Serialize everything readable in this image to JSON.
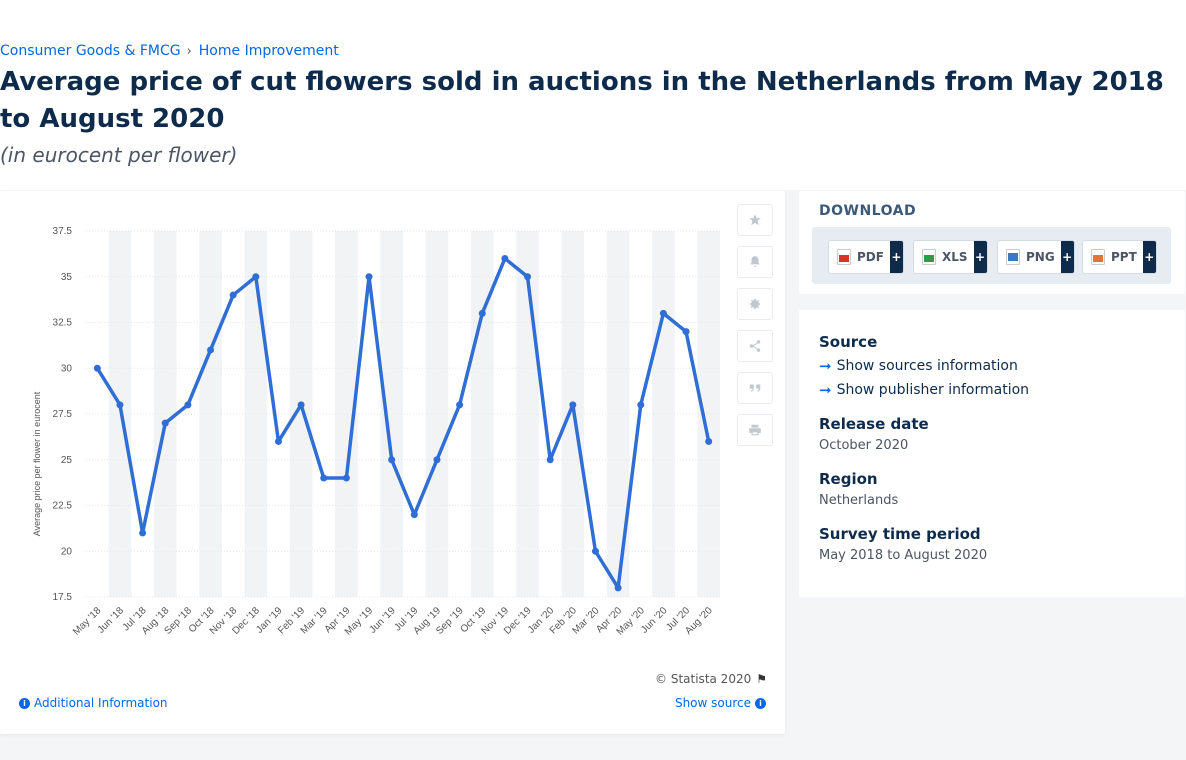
{
  "breadcrumb": [
    "Consumer Goods & FMCG",
    "Home Improvement"
  ],
  "title": "Average price of cut flowers sold in auctions in the Netherlands from May 2018 to August 2020",
  "subtitle": "(in eurocent per flower)",
  "chart_data": {
    "type": "line",
    "ylabel": "Average price per flower in eurocent",
    "ylim": [
      17.5,
      37.5
    ],
    "yticks": [
      17.5,
      20,
      22.5,
      25,
      27.5,
      30,
      32.5,
      35,
      37.5
    ],
    "ytick_labels": [
      "17.5",
      "20",
      "22.5",
      "25",
      "27.5",
      "30",
      "32.5",
      "35",
      "37.5"
    ],
    "categories": [
      "May '18",
      "Jun '18",
      "Jul '18",
      "Aug '18",
      "Sep '18",
      "Oct '18",
      "Nov '18",
      "Dec '18",
      "Jan '19",
      "Feb '19",
      "Mar '19",
      "Apr '19",
      "May '19",
      "Jun '19",
      "Jul '19",
      "Aug '19",
      "Sep '19",
      "Oct '19",
      "Nov '19",
      "Dec '19",
      "Jan '20",
      "Feb '20",
      "Mar '20",
      "Apr '20",
      "May '20",
      "Jun '20",
      "Jul '20",
      "Aug '20"
    ],
    "series": [
      {
        "values": [
          30,
          28,
          21,
          27,
          28,
          31,
          34,
          35,
          26,
          28,
          24,
          24,
          35,
          25,
          22,
          25,
          28,
          33,
          36,
          35,
          25,
          28,
          20,
          18,
          28,
          33,
          32,
          26
        ]
      }
    ],
    "color": "#2f6ed4",
    "band_color": "#f2f3f5",
    "grid": true
  },
  "chart_card": {
    "copyright": "© Statista 2020",
    "additional_info": "Additional Information",
    "show_source": "Show source"
  },
  "tools": [
    "star-icon",
    "bell-icon",
    "gear-icon",
    "share-icon",
    "quote-icon",
    "print-icon"
  ],
  "download": {
    "title": "DOWNLOAD",
    "buttons": [
      {
        "label": "PDF",
        "color": "#d9342b"
      },
      {
        "label": "XLS",
        "color": "#2f9a47"
      },
      {
        "label": "PNG",
        "color": "#3a78c4"
      },
      {
        "label": "PPT",
        "color": "#e8732c"
      }
    ],
    "plus": "+"
  },
  "info": {
    "source_label": "Source",
    "sources_link": "Show sources information",
    "publisher_link": "Show publisher information",
    "release_label": "Release date",
    "release_value": "October 2020",
    "region_label": "Region",
    "region_value": "Netherlands",
    "survey_label": "Survey time period",
    "survey_value": "May 2018 to August 2020"
  }
}
